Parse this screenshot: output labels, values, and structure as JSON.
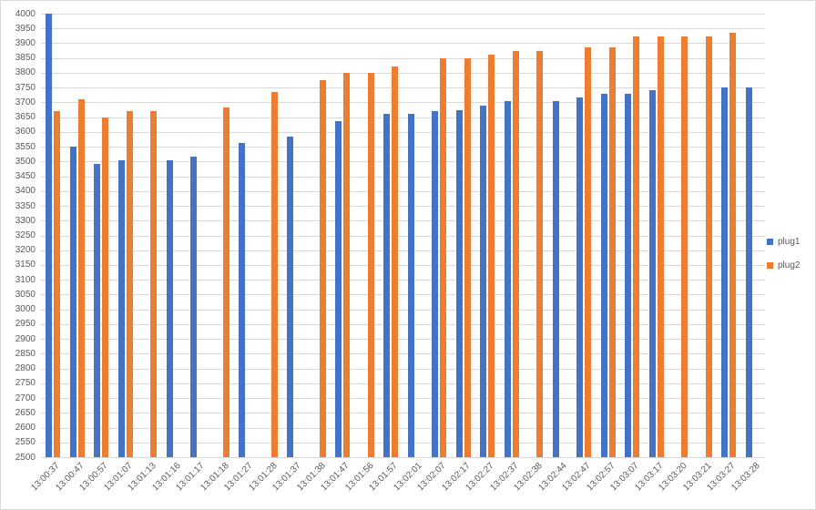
{
  "chart_data": {
    "type": "bar",
    "title": "",
    "xlabel": "",
    "ylabel": "",
    "ylim": [
      2500,
      4000
    ],
    "ytick_step": 50,
    "grid": true,
    "legend_position": "right",
    "categories": [
      "13:00:37",
      "13:00:47",
      "13:00:57",
      "13:01:07",
      "13:01:13",
      "13:01:16",
      "13:01:17",
      "13:01:18",
      "13:01:27",
      "13:01:28",
      "13:01:37",
      "13:01:38",
      "13:01:47",
      "13:01:56",
      "13:01:57",
      "13:02:01",
      "13:02:07",
      "13:02:17",
      "13:02:27",
      "13:02:37",
      "13:02:38",
      "13:02:44",
      "13:02:47",
      "13:02:57",
      "13:03:07",
      "13:03:17",
      "13:03:20",
      "13:03:21",
      "13:03:27",
      "13:03:28"
    ],
    "series": [
      {
        "name": "plug1",
        "color": "#4472C4",
        "values": [
          4000,
          3550,
          3493,
          3505,
          null,
          3505,
          3516,
          null,
          3562,
          null,
          3585,
          null,
          3637,
          null,
          3660,
          3660,
          3670,
          3675,
          3690,
          3706,
          null,
          3706,
          3716,
          3728,
          3730,
          3740,
          null,
          null,
          3752,
          3752
        ]
      },
      {
        "name": "plug2",
        "color": "#ED7D31",
        "values": [
          3672,
          3710,
          3650,
          3672,
          3672,
          null,
          null,
          3684,
          null,
          3736,
          null,
          3774,
          3800,
          3800,
          3822,
          null,
          3848,
          3848,
          3862,
          3875,
          3875,
          null,
          3887,
          3887,
          3922,
          3922,
          3922,
          3922,
          3935,
          null
        ]
      }
    ]
  },
  "colors": {
    "gridline": "#d9d9d9",
    "axis_text": "#595959",
    "background": "#ffffff"
  }
}
